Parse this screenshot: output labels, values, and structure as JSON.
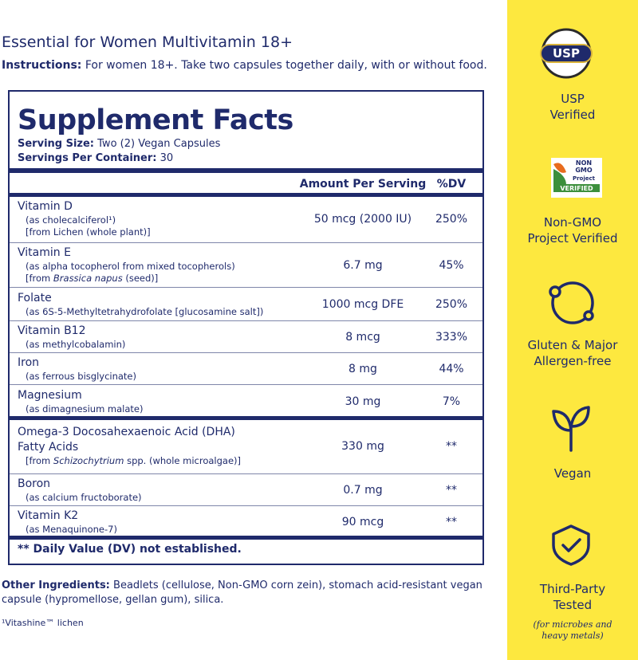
{
  "header": {
    "title": "Essential for Women Multivitamin 18+",
    "instructions_label": "Instructions:",
    "instructions": " For women 18+. Take two capsules together daily, with or without food."
  },
  "facts": {
    "title": "Supplement Facts",
    "serving_size_label": "Serving Size:",
    "serving_size": " Two (2) Vegan Capsules",
    "servings_label": "Servings Per Container:",
    "servings": " 30",
    "col_amount": "Amount Per Serving",
    "col_dv": "%DV",
    "rows": [
      {
        "name": [
          "Vitamin D"
        ],
        "notes": [
          {
            "text": "(as cholecalciferol¹)"
          },
          {
            "text": "[from Lichen (whole plant)]"
          }
        ],
        "amount": "50 mcg (2000 IU)",
        "dv": "250%"
      },
      {
        "name": [
          "Vitamin E"
        ],
        "notes": [
          {
            "text": "(as alpha tocopherol from mixed tocopherols)"
          },
          {
            "before": "[from ",
            "italic": "Brassica napus",
            "after": " (seed)]"
          }
        ],
        "amount": "6.7 mg",
        "dv": "45%"
      },
      {
        "name": [
          "Folate"
        ],
        "notes": [
          {
            "text": "(as 6S-5-Methyltetrahydrofolate [glucosamine salt])"
          }
        ],
        "amount": "1000 mcg DFE",
        "dv": "250%"
      },
      {
        "name": [
          "Vitamin B12"
        ],
        "notes": [
          {
            "text": "(as methylcobalamin)"
          }
        ],
        "amount": "8 mcg",
        "dv": "333%"
      },
      {
        "name": [
          "Iron"
        ],
        "notes": [
          {
            "text": "(as ferrous bisglycinate)"
          }
        ],
        "amount": "8 mg",
        "dv": "44%"
      },
      {
        "name": [
          "Magnesium"
        ],
        "notes": [
          {
            "text": "(as dimagnesium malate)"
          }
        ],
        "amount": "30 mg",
        "dv": "7%"
      },
      {
        "name": [
          "Omega-3 Docosahexaenoic Acid (DHA)",
          "Fatty Acids"
        ],
        "notes": [
          {
            "before": "[from ",
            "italic": "Schizochytrium",
            "after": " spp. (whole microalgae)]"
          }
        ],
        "amount": "330 mg",
        "dv": "**"
      },
      {
        "name": [
          "Boron"
        ],
        "notes": [
          {
            "text": "(as calcium fructoborate)"
          }
        ],
        "amount": "0.7 mg",
        "dv": "**"
      },
      {
        "name": [
          "Vitamin K2"
        ],
        "notes": [
          {
            "text": "(as Menaquinone-7)"
          }
        ],
        "amount": "90 mcg",
        "dv": "**"
      }
    ],
    "footnote": "** Daily Value (DV) not established."
  },
  "other": {
    "label": "Other Ingredients:",
    "text": " Beadlets (cellulose, Non-GMO corn zein), stomach acid-resistant vegan capsule (hypromellose, gellan gum), silica.",
    "footnote": "¹Vitashine™ lichen"
  },
  "sidebar": {
    "usp_logo": "USP",
    "nongmo_logo": [
      "NON",
      "GMO",
      "Project",
      "VERIFIED"
    ],
    "badges": [
      {
        "label": [
          "USP",
          "Verified"
        ]
      },
      {
        "label": [
          "Non-GMO",
          "Project Verified"
        ]
      },
      {
        "label": [
          "Gluten & Major",
          "Allergen-free"
        ]
      },
      {
        "label": [
          "Vegan"
        ]
      },
      {
        "label": [
          "Third-Party",
          "Tested"
        ],
        "note": [
          "(for microbes and",
          "heavy metals)"
        ]
      }
    ]
  }
}
